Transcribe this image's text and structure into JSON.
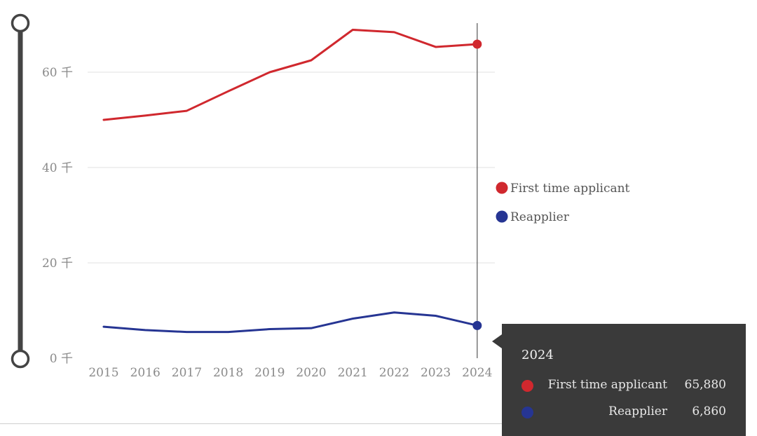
{
  "chart_data": {
    "type": "line",
    "x": [
      "2015",
      "2016",
      "2017",
      "2018",
      "2019",
      "2020",
      "2021",
      "2022",
      "2023",
      "2024"
    ],
    "series": [
      {
        "name": "First time applicant",
        "color": "#d0282e",
        "values": [
          50000,
          50900,
          51900,
          56000,
          60000,
          62500,
          68900,
          68400,
          65300,
          65880
        ]
      },
      {
        "name": "Reapplier",
        "color": "#263593",
        "values": [
          6600,
          5900,
          5500,
          5500,
          6100,
          6300,
          8300,
          9600,
          8900,
          6860
        ]
      }
    ],
    "y_ticks": [
      {
        "value": 0,
        "label": "0 千"
      },
      {
        "value": 20000,
        "label": "20 千"
      },
      {
        "value": 40000,
        "label": "40 千"
      },
      {
        "value": 60000,
        "label": "60 千"
      }
    ],
    "ylim": [
      0,
      70000
    ],
    "grid": true,
    "legend_placement": "right"
  },
  "tooltip": {
    "title": "2024",
    "rows": [
      {
        "name": "First time applicant",
        "value": "65,880",
        "color": "#d0282e"
      },
      {
        "name": "Reapplier",
        "value": "6,860",
        "color": "#263593"
      }
    ]
  },
  "highlight_x": "2024",
  "colors": {
    "grid": "#ececec",
    "tick_text": "#8a8a8a",
    "slider": "#444444",
    "crosshair": "#555555",
    "tooltip_bg": "#3a3a3a"
  }
}
